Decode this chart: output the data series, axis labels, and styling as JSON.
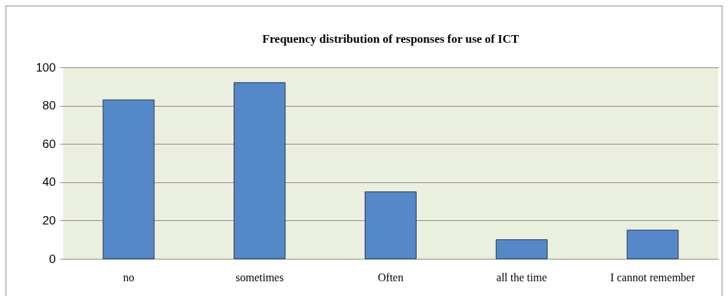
{
  "chart_data": {
    "type": "bar",
    "title": "Frequency distribution  of responses for use of ICT",
    "categories": [
      "no",
      "sometimes",
      "Often",
      "all the time",
      "I cannot remember"
    ],
    "values": [
      83,
      92,
      35,
      10,
      15
    ],
    "color": "#5588c8",
    "ylim": [
      0,
      100
    ],
    "yticks": [
      0,
      20,
      40,
      60,
      80,
      100
    ],
    "grid": "y"
  }
}
